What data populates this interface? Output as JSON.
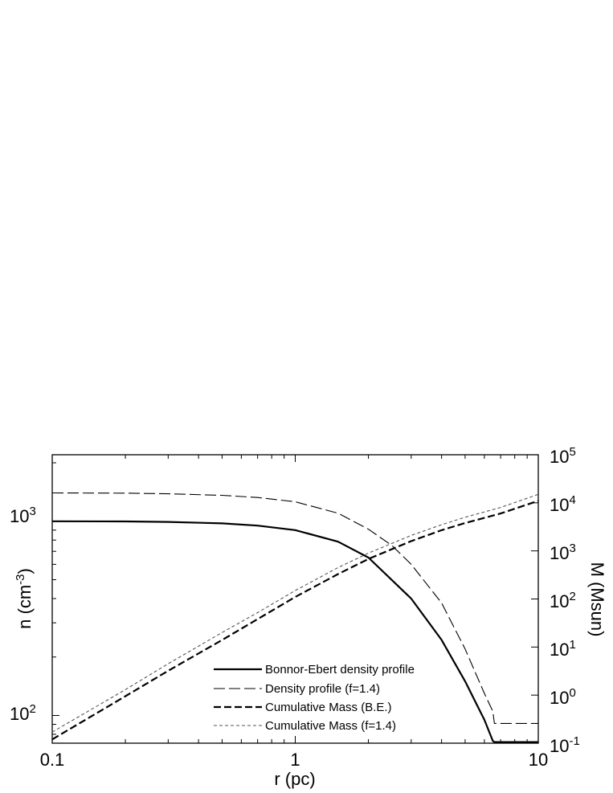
{
  "chart_data": {
    "type": "line",
    "x_axis": {
      "label": "r  (pc)",
      "scale": "log",
      "range": [
        0.1,
        10
      ],
      "ticks": [
        0.1,
        1,
        10
      ],
      "tick_labels": [
        "0.1",
        "1",
        "10"
      ]
    },
    "y_left": {
      "label_base": "n (cm",
      "label_sup": "-3",
      "label_end": ")",
      "scale": "log",
      "range": [
        72,
        2200
      ],
      "ticks": [
        100,
        1000
      ],
      "tick_base": [
        "10",
        "10"
      ],
      "tick_exp": [
        "2",
        "3"
      ]
    },
    "y_right": {
      "label": "M  (Msun)",
      "scale": "log",
      "range": [
        0.1,
        100000
      ],
      "ticks": [
        0.1,
        1,
        10,
        100,
        1000,
        10000,
        100000
      ],
      "tick_base": [
        "10",
        "10",
        "10",
        "10",
        "10",
        "10",
        "10"
      ],
      "tick_exp": [
        "-1",
        "0",
        "1",
        "2",
        "3",
        "4",
        "5"
      ]
    },
    "legend": {
      "position": "bottom-center",
      "entries": [
        "Bonnor-Ebert density profile",
        "Density profile (f=1.4)",
        "Cumulative Mass (B.E.)",
        "Cumulative Mass (f=1.4)"
      ]
    },
    "series": [
      {
        "name": "Bonnor-Ebert density profile",
        "axis": "left",
        "style": "solid",
        "x": [
          0.1,
          0.2,
          0.3,
          0.5,
          0.7,
          1.0,
          1.5,
          2.0,
          3.0,
          4.0,
          5.0,
          6.0,
          6.5,
          6.6,
          10
        ],
        "y": [
          1000,
          998,
          992,
          975,
          950,
          900,
          785,
          650,
          400,
          245,
          150,
          95,
          74,
          73,
          73
        ]
      },
      {
        "name": "Density profile (f=1.4)",
        "axis": "left",
        "style": "dashed",
        "x": [
          0.1,
          0.2,
          0.3,
          0.5,
          0.7,
          1.0,
          1.5,
          2.0,
          2.5,
          3.0,
          4.0,
          5.0,
          6.0,
          6.5,
          6.6,
          10
        ],
        "y": [
          1400,
          1395,
          1385,
          1360,
          1325,
          1260,
          1100,
          910,
          750,
          600,
          380,
          220,
          130,
          105,
          91,
          91
        ]
      },
      {
        "name": "Cumulative Mass (B.E.)",
        "axis": "right",
        "style": "heavy-dashed",
        "x": [
          0.1,
          0.2,
          0.3,
          0.5,
          0.7,
          1.0,
          1.5,
          2.0,
          3.0,
          4.0,
          5.0,
          7.0,
          10
        ],
        "y": [
          0.12,
          0.95,
          3.2,
          14,
          38,
          110,
          330,
          680,
          1600,
          2700,
          3800,
          6000,
          11000
        ]
      },
      {
        "name": "Cumulative Mass (f=1.4)",
        "axis": "right",
        "style": "dotted",
        "x": [
          0.1,
          0.2,
          0.3,
          0.5,
          0.7,
          1.0,
          1.5,
          2.0,
          3.0,
          4.0,
          5.0,
          7.0,
          10
        ],
        "y": [
          0.17,
          1.3,
          4.5,
          20,
          52,
          150,
          450,
          900,
          2100,
          3500,
          5000,
          8000,
          15000
        ]
      }
    ]
  }
}
